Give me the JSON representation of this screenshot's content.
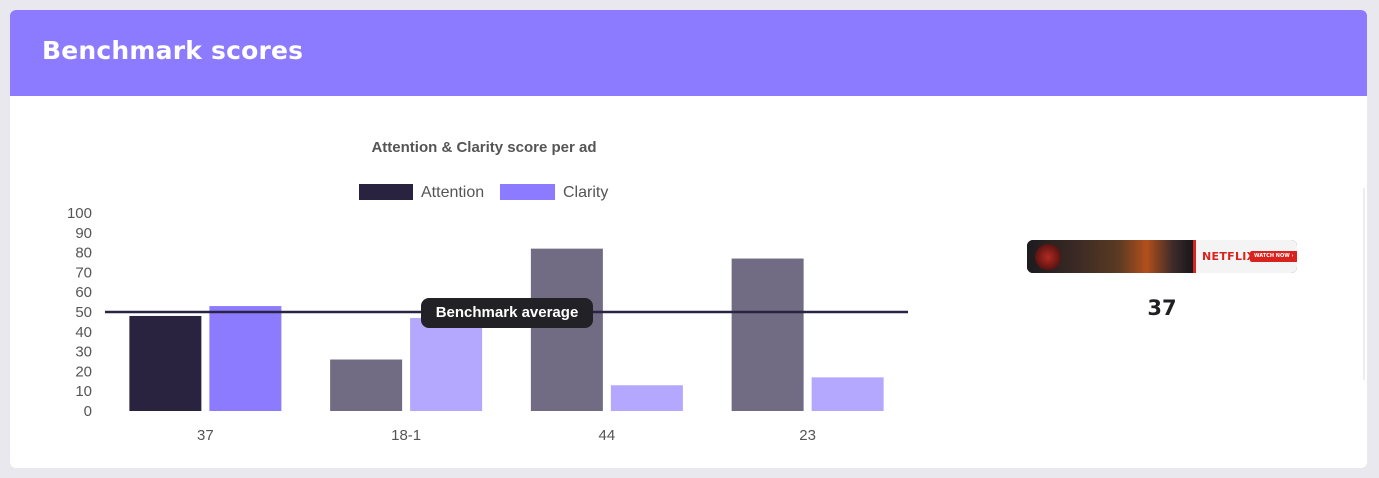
{
  "header": {
    "title": "Benchmark scores"
  },
  "chart_data": {
    "type": "bar",
    "title": "Attention & Clarity score per ad",
    "categories": [
      "37",
      "18-1",
      "44",
      "23"
    ],
    "series": [
      {
        "name": "Attention",
        "values": [
          48,
          26,
          82,
          77
        ]
      },
      {
        "name": "Clarity",
        "values": [
          53,
          47,
          13,
          17
        ]
      }
    ],
    "ylim": [
      0,
      100
    ],
    "yticks": [
      0,
      10,
      20,
      30,
      40,
      50,
      60,
      70,
      80,
      90,
      100
    ],
    "grid": false,
    "legend_position": "top",
    "reference_line": {
      "label": "Benchmark average",
      "value": 50
    },
    "colors": {
      "attention_highlight": "#29233f",
      "attention_muted": "#716c83",
      "clarity_highlight": "#8c7bff",
      "clarity_muted": "#b3a8fd",
      "benchmark_line": "#2a2443",
      "benchmark_label_bg": "#222226"
    },
    "highlighted_category": "37"
  },
  "preview": {
    "brand": "NETFLIX",
    "cta": "WATCH NOW ›",
    "caption": "37"
  },
  "colors": {
    "accent": "#8c7bff",
    "background": "#e9e8ee",
    "card": "#ffffff"
  }
}
